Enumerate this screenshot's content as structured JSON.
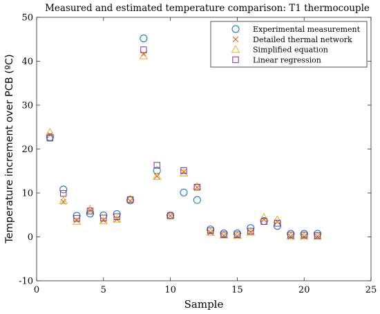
{
  "chart_data": {
    "type": "scatter",
    "title": "Measured and estimated temperature comparison: T1 thermocouple",
    "xlabel": "Sample",
    "ylabel": "Temperature increment over PCB (ºC)",
    "xlim": [
      0,
      25
    ],
    "ylim": [
      -10,
      50
    ],
    "xticks": [
      0,
      5,
      10,
      15,
      20,
      25
    ],
    "yticks": [
      -10,
      0,
      10,
      20,
      30,
      40,
      50
    ],
    "grid": false,
    "legend_position": "top-right",
    "x": [
      1,
      2,
      3,
      4,
      5,
      6,
      7,
      8,
      9,
      10,
      11,
      12,
      13,
      14,
      15,
      16,
      17,
      18,
      19,
      20,
      21
    ],
    "series": [
      {
        "name": "Experimental measurement",
        "marker": "circle",
        "color": "#0072BD",
        "values": [
          22.7,
          10.8,
          4.8,
          5.3,
          4.9,
          5.2,
          8.3,
          45.2,
          15.1,
          4.9,
          10.1,
          8.4,
          1.7,
          0.8,
          0.8,
          2.0,
          3.6,
          2.5,
          0.7,
          0.7,
          0.7
        ]
      },
      {
        "name": "Detailed thermal network",
        "marker": "x",
        "color": "#D95319",
        "values": [
          23.2,
          8.0,
          3.8,
          6.0,
          3.8,
          4.0,
          8.2,
          41.6,
          13.8,
          4.8,
          14.8,
          11.3,
          1.0,
          0.3,
          0.2,
          1.1,
          3.9,
          3.4,
          0.1,
          0.1,
          0.1
        ]
      },
      {
        "name": "Simplified equation",
        "marker": "triangle",
        "color": "#EDB120",
        "values": [
          23.8,
          8.2,
          3.5,
          6.3,
          3.6,
          4.0,
          8.6,
          41.2,
          13.7,
          4.9,
          14.5,
          11.5,
          1.0,
          0.4,
          0.3,
          1.0,
          4.4,
          3.9,
          0.1,
          0.1,
          0.1
        ]
      },
      {
        "name": "Linear regression",
        "marker": "square",
        "color": "#7E2F8E",
        "values": [
          22.5,
          9.9,
          4.2,
          5.9,
          4.3,
          4.6,
          8.5,
          42.6,
          16.3,
          4.8,
          15.1,
          11.3,
          1.4,
          0.5,
          0.5,
          1.3,
          3.5,
          3.1,
          0.4,
          0.4,
          0.3
        ]
      }
    ]
  }
}
